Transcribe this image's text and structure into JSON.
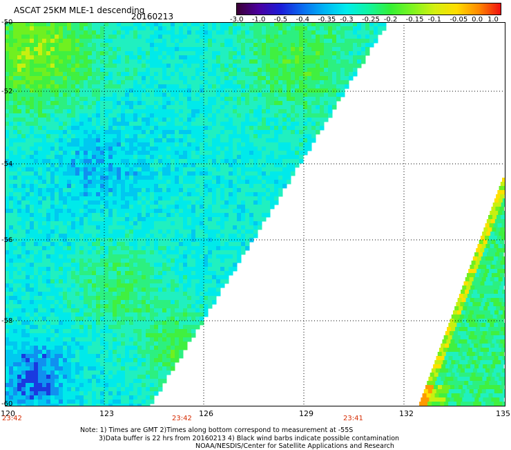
{
  "header": {
    "title": "ASCAT 25KM MLE-1 descending",
    "date": "20160213"
  },
  "colorbar": {
    "labels": [
      "-3.0",
      "-1.0",
      "-0.5",
      "-0.4",
      "-0.35",
      "-0.3",
      "-0.25",
      "-0.2",
      "-0.15",
      "-0.1",
      "-0.05",
      "0.0",
      "1.0"
    ],
    "colors": [
      "#3b0034",
      "#4b00a0",
      "#1b1bd8",
      "#0a6cf0",
      "#00b5f5",
      "#00ecec",
      "#10f5a0",
      "#35f035",
      "#7ff520",
      "#d4f010",
      "#ffdd00",
      "#ff8a00",
      "#f01010"
    ]
  },
  "axes": {
    "lat_labels": [
      "-50",
      "-52",
      "-54",
      "-56",
      "-58",
      "-60"
    ],
    "lon_labels": [
      "120",
      "123",
      "126",
      "129",
      "132",
      "135"
    ],
    "time_labels": [
      "23:42",
      "23:42",
      "23:41"
    ]
  },
  "notes": {
    "line1": "Note: 1) Times are GMT 2)Times along bottom correspond to measurement at -55S",
    "line2": "3)Data buffer is 22 hrs from 20160213 4) Black wind barbs indicate possible contamination",
    "credit": "NOAA/NESDIS/Center for Satellite Applications and Research"
  }
}
